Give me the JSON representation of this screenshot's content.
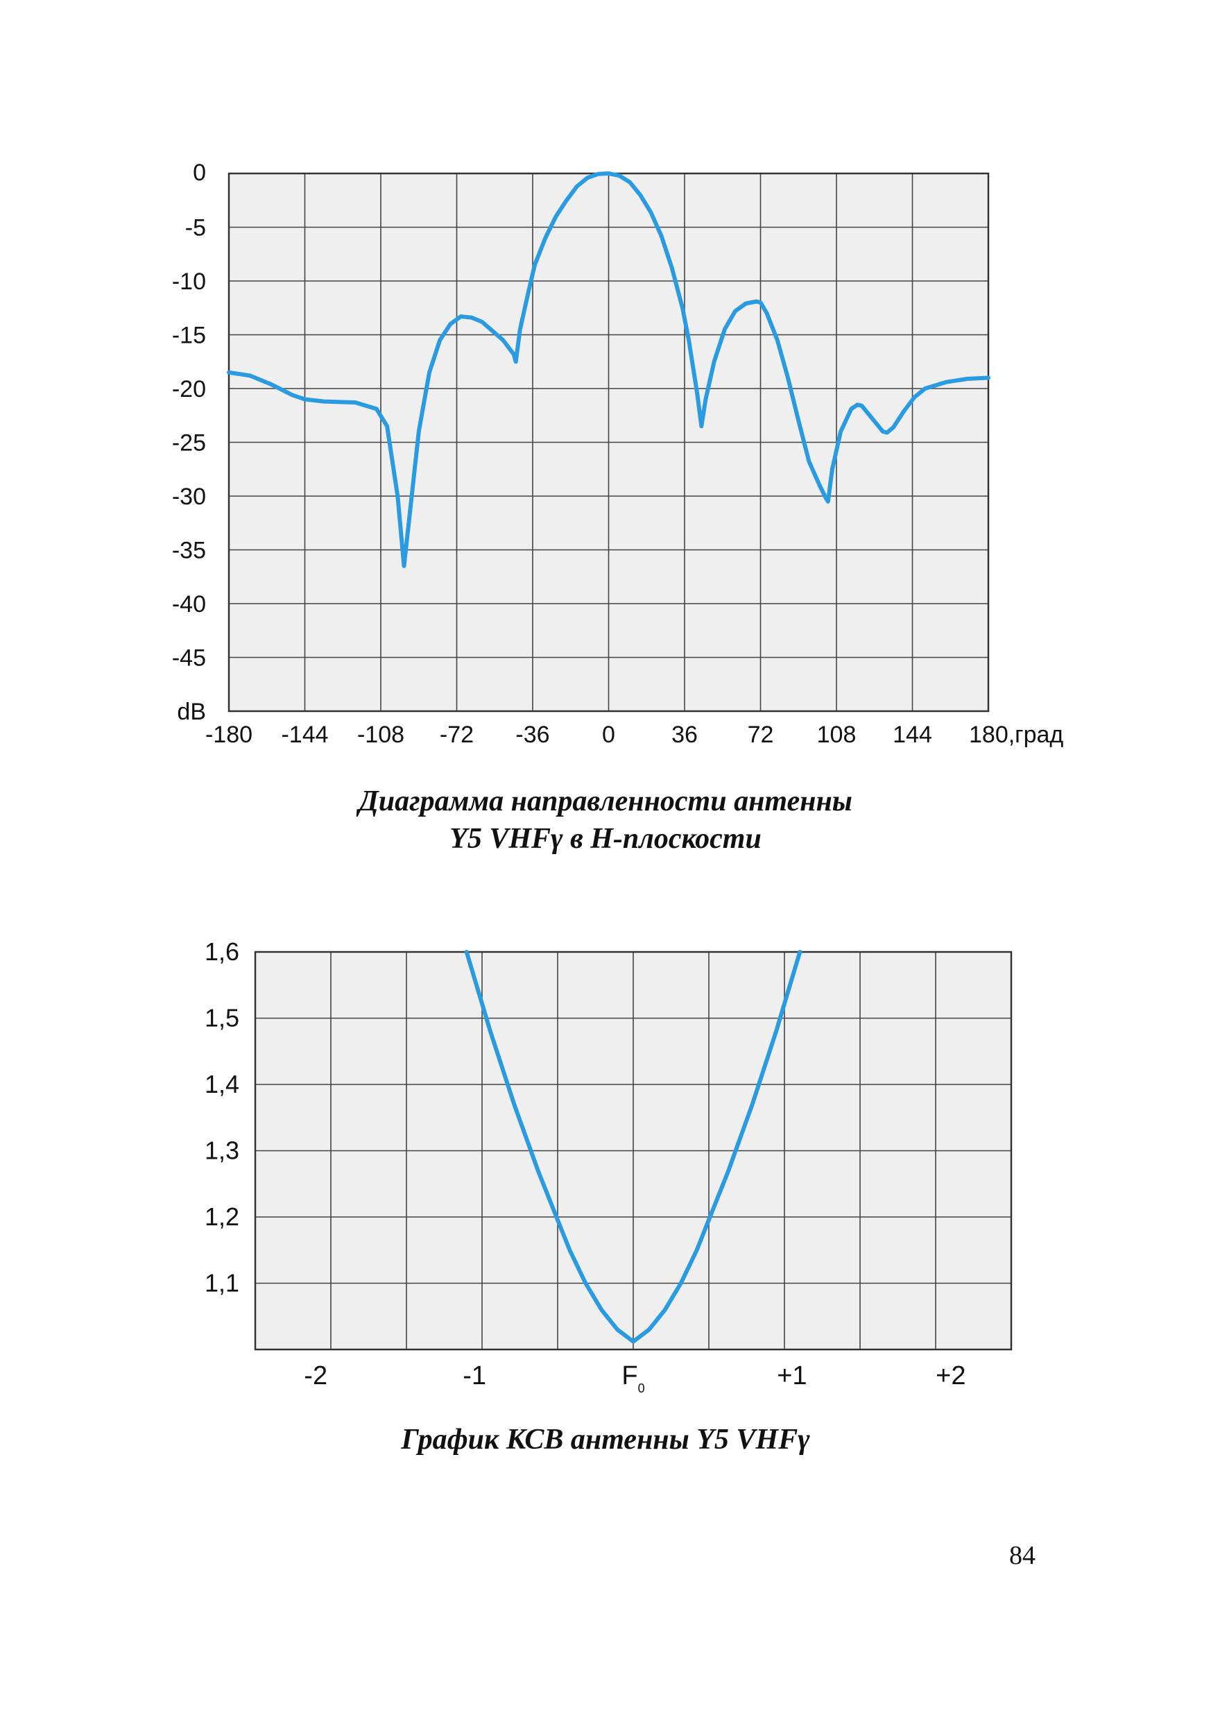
{
  "chart_data": [
    {
      "type": "line",
      "title": "",
      "xlabel": "",
      "ylabel": "dB",
      "x_unit_label": "град",
      "x_ticks": [
        "-180",
        "-144",
        "-108",
        "-72",
        "-36",
        "0",
        "36",
        "72",
        "108",
        "144",
        "180,град"
      ],
      "y_ticks": [
        "0",
        "-5",
        "-10",
        "-15",
        "-20",
        "-25",
        "-30",
        "-35",
        "-40",
        "-45",
        "dB"
      ],
      "xlim": [
        -180,
        180
      ],
      "ylim": [
        -50,
        0
      ],
      "grid": true,
      "line_color": "#2a9be0",
      "x": [
        -180,
        -170,
        -160,
        -150,
        -144,
        -135,
        -120,
        -110,
        -105,
        -100,
        -97,
        -95,
        -90,
        -85,
        -80,
        -75,
        -70,
        -65,
        -60,
        -50,
        -45,
        -44,
        -42,
        -38,
        -35,
        -30,
        -25,
        -20,
        -15,
        -10,
        -5,
        0,
        5,
        10,
        15,
        20,
        25,
        30,
        35,
        38,
        42,
        44,
        46,
        50,
        55,
        60,
        65,
        70,
        72,
        75,
        80,
        85,
        90,
        95,
        100,
        103,
        104,
        106,
        110,
        115,
        118,
        120,
        125,
        130,
        132,
        135,
        140,
        145,
        150,
        160,
        170,
        180
      ],
      "y": [
        -18.5,
        -18.8,
        -19.6,
        -20.6,
        -21.0,
        -21.2,
        -21.3,
        -21.9,
        -23.5,
        -30,
        -36.5,
        -33,
        -24,
        -18.5,
        -15.5,
        -14,
        -13.3,
        -13.4,
        -13.8,
        -15.5,
        -16.8,
        -17.5,
        -14.5,
        -11,
        -8.5,
        -6,
        -4,
        -2.5,
        -1.2,
        -0.4,
        -0.05,
        0,
        -0.2,
        -0.8,
        -2,
        -3.6,
        -5.8,
        -8.8,
        -12.5,
        -15.5,
        -20.5,
        -23.5,
        -21,
        -17.5,
        -14.5,
        -12.8,
        -12.1,
        -11.9,
        -12,
        -13,
        -15.5,
        -19,
        -23,
        -26.8,
        -29,
        -30.2,
        -30.5,
        -27.5,
        -24,
        -21.9,
        -21.5,
        -21.6,
        -22.8,
        -24.0,
        -24.1,
        -23.6,
        -22.1,
        -20.8,
        -20.0,
        -19.4,
        -19.1,
        -19.0
      ]
    },
    {
      "type": "line",
      "title": "",
      "xlabel": "",
      "ylabel": "",
      "x_ticks": [
        "-2",
        "-1",
        "F",
        "+1",
        "+2"
      ],
      "x_tick_f_subscript": "0",
      "y_ticks": [
        "1,6",
        "1,5",
        "1,4",
        "1,3",
        "1,2",
        "1,1"
      ],
      "xlim": [
        -2.5,
        2.5
      ],
      "ylim": [
        1.0,
        1.6
      ],
      "grid": true,
      "line_color": "#2a9be0",
      "x": [
        -1.05,
        -0.9,
        -0.75,
        -0.6,
        -0.5,
        -0.4,
        -0.3,
        -0.2,
        -0.1,
        0,
        0.1,
        0.2,
        0.3,
        0.4,
        0.5,
        0.6,
        0.75,
        0.9,
        1.05
      ],
      "y": [
        1.6,
        1.48,
        1.37,
        1.27,
        1.21,
        1.15,
        1.1,
        1.06,
        1.03,
        1.012,
        1.03,
        1.06,
        1.1,
        1.15,
        1.21,
        1.27,
        1.37,
        1.48,
        1.6
      ]
    }
  ],
  "captions": {
    "chart1_line1": "Диаграмма направленности антенны",
    "chart1_line2": "Y5 VHFγ в H-плоскости",
    "chart2": "График КСВ антенны Y5 VHFγ"
  },
  "page_number": "84"
}
